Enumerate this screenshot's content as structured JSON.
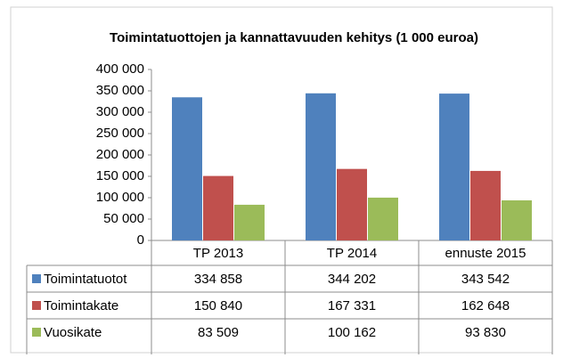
{
  "chart_data": {
    "type": "bar",
    "title": "Toimintatuottojen ja kannattavuuden kehitys (1 000 euroa)",
    "categories": [
      "TP 2013",
      "TP 2014",
      "ennuste 2015"
    ],
    "series": [
      {
        "name": "Toimintatuotot",
        "color": "#4f81bd",
        "values": [
          334858,
          344202,
          343542
        ],
        "value_labels": [
          "334 858",
          "344 202",
          "343 542"
        ]
      },
      {
        "name": "Toimintakate",
        "color": "#c0504d",
        "values": [
          150840,
          167331,
          162648
        ],
        "value_labels": [
          "150 840",
          "167 331",
          "162 648"
        ]
      },
      {
        "name": "Vuosikate",
        "color": "#9bbb59",
        "values": [
          83509,
          100162,
          93830
        ],
        "value_labels": [
          "83 509",
          "100 162",
          "93 830"
        ]
      }
    ],
    "ylim": [
      0,
      400000
    ],
    "yticks": [
      0,
      {
        "value": 50000,
        "label": "50 000"
      },
      {
        "value": 100000,
        "label": "100 000"
      },
      {
        "value": 150000,
        "label": "150 000"
      },
      {
        "value": 200000,
        "label": "200 000"
      },
      {
        "value": 250000,
        "label": "250 000"
      },
      {
        "value": 300000,
        "label": "300 000"
      },
      {
        "value": 350000,
        "label": "350 000"
      },
      {
        "value": 400000,
        "label": "400 000"
      }
    ],
    "grid": false,
    "legend": "table"
  }
}
